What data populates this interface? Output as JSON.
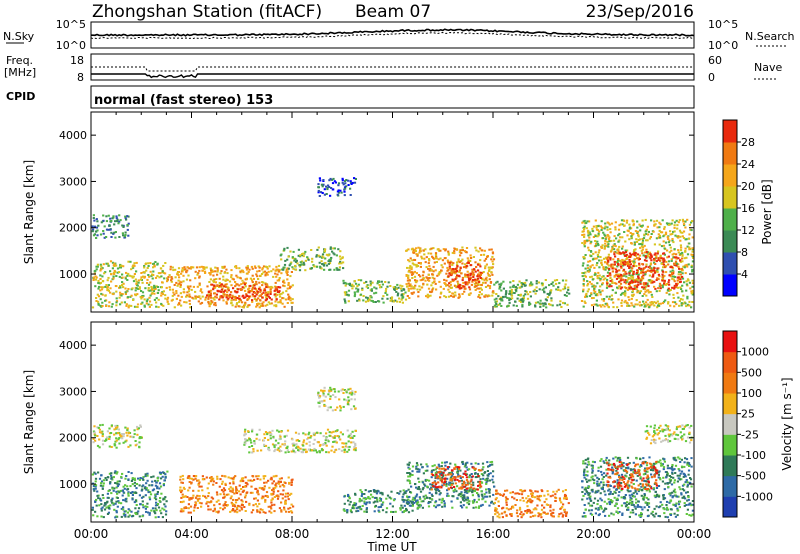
{
  "header": {
    "station": "Zhongshan Station (fitACF)",
    "beam": "Beam 07",
    "date": "23/Sep/2016"
  },
  "noise_panel": {
    "left_label": "N.Sky",
    "left_ticks": [
      "10^5",
      "10^0"
    ],
    "right_ticks": [
      "10^5",
      "10^0"
    ],
    "right_label": "N.Search"
  },
  "freq_panel": {
    "left_label_1": "Freq.",
    "left_label_2": "[MHz]",
    "left_ticks": [
      "18",
      "8"
    ],
    "right_ticks": [
      "60",
      "0"
    ],
    "right_label": "Nave"
  },
  "cpid_panel": {
    "label": "CPID",
    "mode_text": "normal (fast stereo) 153"
  },
  "colors": {
    "power_scale": [
      "#0000ff",
      "#2f4fb0",
      "#3b8a55",
      "#4fb04a",
      "#d7c51f",
      "#f5a61a",
      "#f07a12",
      "#e8290d"
    ],
    "velocity_scale": [
      "#1f3fb0",
      "#2e6aa6",
      "#2f7a58",
      "#5fc63c",
      "#c8c8c0",
      "#f2b21a",
      "#f07a12",
      "#ee5a12",
      "#e81010"
    ]
  },
  "chart_data": [
    {
      "type": "heatmap",
      "name": "power-panel",
      "xlabel": "",
      "ylabel": "Slant Range [km]",
      "x_ticks": [
        "00:00",
        "04:00",
        "08:00",
        "12:00",
        "16:00",
        "20:00",
        "00:00"
      ],
      "xlim_hours": [
        0,
        24
      ],
      "y_ticks": [
        1000,
        2000,
        3000,
        4000
      ],
      "ylim_km": [
        180,
        4500
      ],
      "colorbar": {
        "label": "Power [dB]",
        "range": [
          0,
          32
        ],
        "ticks": [
          "4",
          "8",
          "12",
          "16",
          "20",
          "24",
          "28"
        ]
      },
      "echo_regions": [
        {
          "t_start": 0.0,
          "t_end": 3.0,
          "r_start": 300,
          "r_end": 1300,
          "level": 4
        },
        {
          "t_start": 0.0,
          "t_end": 1.5,
          "r_start": 1800,
          "r_end": 2300,
          "level": 2
        },
        {
          "t_start": 3.0,
          "t_end": 8.0,
          "r_start": 300,
          "r_end": 1200,
          "level": 5
        },
        {
          "t_start": 4.5,
          "t_end": 7.5,
          "r_start": 450,
          "r_end": 800,
          "level": 7
        },
        {
          "t_start": 7.5,
          "t_end": 10.0,
          "r_start": 1100,
          "r_end": 1600,
          "level": 3
        },
        {
          "t_start": 9.0,
          "t_end": 10.5,
          "r_start": 2700,
          "r_end": 3100,
          "level": 1
        },
        {
          "t_start": 10.0,
          "t_end": 12.5,
          "r_start": 400,
          "r_end": 900,
          "level": 3
        },
        {
          "t_start": 12.5,
          "t_end": 16.0,
          "r_start": 500,
          "r_end": 1600,
          "level": 5
        },
        {
          "t_start": 14.0,
          "t_end": 15.5,
          "r_start": 700,
          "r_end": 1300,
          "level": 7
        },
        {
          "t_start": 16.0,
          "t_end": 19.0,
          "r_start": 300,
          "r_end": 900,
          "level": 3
        },
        {
          "t_start": 19.5,
          "t_end": 24.0,
          "r_start": 300,
          "r_end": 2200,
          "level": 4
        },
        {
          "t_start": 20.5,
          "t_end": 23.5,
          "r_start": 700,
          "r_end": 1500,
          "level": 7
        }
      ]
    },
    {
      "type": "heatmap",
      "name": "velocity-panel",
      "xlabel": "Time UT",
      "ylabel": "Slant Range [km]",
      "x_ticks": [
        "00:00",
        "04:00",
        "08:00",
        "12:00",
        "16:00",
        "20:00",
        "00:00"
      ],
      "xlim_hours": [
        0,
        24
      ],
      "y_ticks": [
        1000,
        2000,
        3000,
        4000
      ],
      "ylim_km": [
        180,
        4500
      ],
      "colorbar": {
        "label": "Velocity [m s⁻¹]",
        "ticks": [
          "1000",
          "500",
          "100",
          "25",
          "-25",
          "-100",
          "-500",
          "-1000"
        ]
      },
      "echo_regions": [
        {
          "t_start": 0.0,
          "t_end": 3.0,
          "r_start": 300,
          "r_end": 1300,
          "level": 2
        },
        {
          "t_start": 0.0,
          "t_end": 2.0,
          "r_start": 1800,
          "r_end": 2300,
          "level": 4
        },
        {
          "t_start": 3.5,
          "t_end": 8.0,
          "r_start": 400,
          "r_end": 1200,
          "level": 6
        },
        {
          "t_start": 6.0,
          "t_end": 10.5,
          "r_start": 1700,
          "r_end": 2200,
          "level": 4
        },
        {
          "t_start": 9.0,
          "t_end": 10.5,
          "r_start": 2600,
          "r_end": 3100,
          "level": 4
        },
        {
          "t_start": 10.0,
          "t_end": 13.0,
          "r_start": 400,
          "r_end": 900,
          "level": 2
        },
        {
          "t_start": 12.5,
          "t_end": 16.0,
          "r_start": 500,
          "r_end": 1500,
          "level": 2
        },
        {
          "t_start": 13.5,
          "t_end": 15.5,
          "r_start": 900,
          "r_end": 1400,
          "level": 7
        },
        {
          "t_start": 16.0,
          "t_end": 19.0,
          "r_start": 300,
          "r_end": 900,
          "level": 6
        },
        {
          "t_start": 19.5,
          "t_end": 24.0,
          "r_start": 300,
          "r_end": 1600,
          "level": 2
        },
        {
          "t_start": 20.5,
          "t_end": 22.5,
          "r_start": 900,
          "r_end": 1500,
          "level": 7
        },
        {
          "t_start": 22.0,
          "t_end": 24.0,
          "r_start": 1900,
          "r_end": 2300,
          "level": 4
        }
      ]
    }
  ]
}
